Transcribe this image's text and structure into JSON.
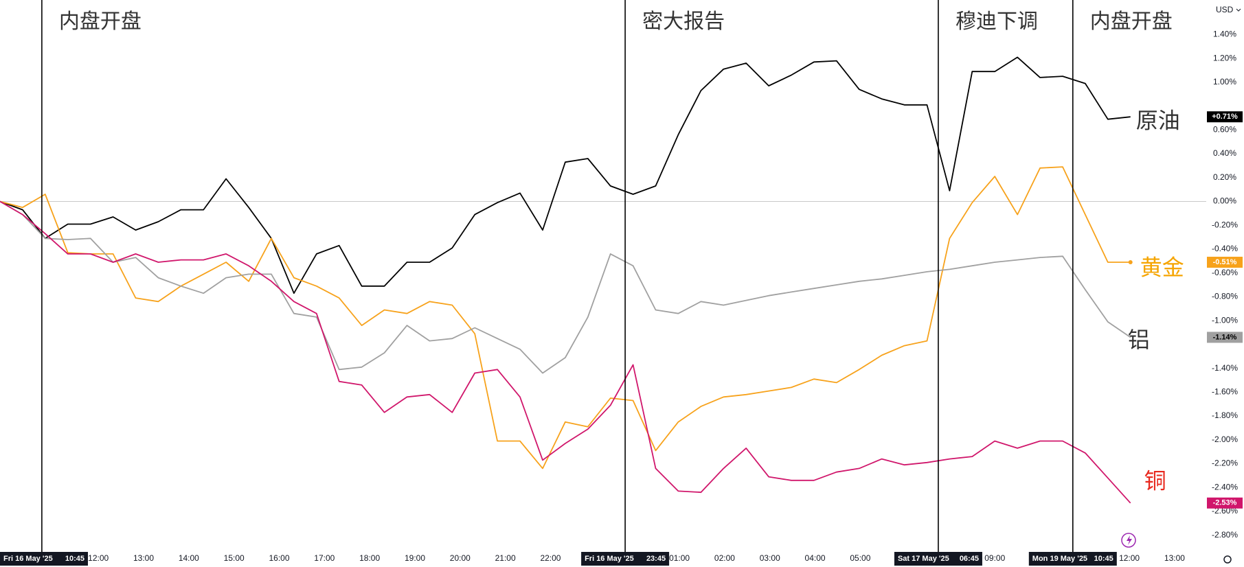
{
  "chart_data": {
    "type": "line",
    "currency": "USD",
    "x": [
      0,
      2,
      4,
      6,
      8,
      10,
      12,
      14,
      16,
      18,
      20,
      22,
      24,
      26,
      28,
      30,
      32,
      34,
      36,
      38,
      40,
      42,
      44,
      46,
      48,
      50,
      52,
      54,
      56,
      58,
      60,
      62,
      64,
      66,
      68,
      70,
      72,
      74,
      76,
      78,
      80,
      82,
      84,
      86,
      88,
      90,
      92,
      94,
      96,
      98,
      100
    ],
    "xlim": [
      0,
      106.7
    ],
    "ylim": [
      -2.94,
      1.69
    ],
    "series": [
      {
        "name": "原油",
        "color": "#000000",
        "label_color": "#333333",
        "last_label": "+0.71%",
        "last_text_color": "#ffffff",
        "values": [
          0.0,
          -0.07,
          -0.31,
          -0.19,
          -0.19,
          -0.13,
          -0.24,
          -0.17,
          -0.07,
          -0.07,
          0.19,
          -0.05,
          -0.31,
          -0.77,
          -0.44,
          -0.37,
          -0.71,
          -0.71,
          -0.51,
          -0.51,
          -0.39,
          -0.11,
          -0.01,
          0.07,
          -0.24,
          0.33,
          0.36,
          0.13,
          0.06,
          0.13,
          0.56,
          0.93,
          1.11,
          1.16,
          0.97,
          1.06,
          1.17,
          1.18,
          0.94,
          0.86,
          0.81,
          0.81,
          0.09,
          1.09,
          1.09,
          1.21,
          1.04,
          1.05,
          0.99,
          0.69,
          0.71
        ]
      },
      {
        "name": "黄金",
        "color": "#f7a21b",
        "label_color": "#f5a400",
        "last_label": "-0.51%",
        "last_text_color": "#ffffff",
        "values": [
          0.0,
          -0.05,
          0.06,
          -0.43,
          -0.44,
          -0.44,
          -0.81,
          -0.84,
          -0.71,
          -0.61,
          -0.51,
          -0.67,
          -0.31,
          -0.64,
          -0.71,
          -0.81,
          -1.04,
          -0.91,
          -0.94,
          -0.84,
          -0.87,
          -1.11,
          -2.01,
          -2.01,
          -2.24,
          -1.85,
          -1.89,
          -1.65,
          -1.67,
          -2.09,
          -1.85,
          -1.72,
          -1.64,
          -1.62,
          -1.59,
          -1.56,
          -1.49,
          -1.52,
          -1.41,
          -1.29,
          -1.21,
          -1.17,
          -0.31,
          -0.01,
          0.21,
          -0.11,
          0.28,
          0.29,
          -0.11,
          -0.51,
          -0.51
        ]
      },
      {
        "name": "铝",
        "color": "#a0a0a0",
        "label_color": "#333333",
        "last_label": "-1.14%",
        "last_text_color": "#000000",
        "values": [
          0.0,
          -0.11,
          -0.31,
          -0.32,
          -0.31,
          -0.51,
          -0.47,
          -0.64,
          -0.71,
          -0.77,
          -0.64,
          -0.61,
          -0.61,
          -0.94,
          -0.97,
          -1.41,
          -1.39,
          -1.27,
          -1.04,
          -1.17,
          -1.15,
          -1.06,
          -1.15,
          -1.24,
          -1.44,
          -1.31,
          -0.97,
          -0.44,
          -0.54,
          -0.91,
          -0.94,
          -0.84,
          -0.87,
          -0.83,
          -0.79,
          -0.76,
          -0.73,
          -0.7,
          -0.67,
          -0.65,
          -0.62,
          -0.59,
          -0.57,
          -0.54,
          -0.51,
          -0.49,
          -0.47,
          -0.46,
          -0.74,
          -1.01,
          -1.14
        ]
      },
      {
        "name": "铜",
        "color": "#d0166b",
        "label_color": "#e8281e",
        "last_label": "-2.53%",
        "last_text_color": "#ffffff",
        "values": [
          0.0,
          -0.11,
          -0.27,
          -0.44,
          -0.44,
          -0.51,
          -0.44,
          -0.51,
          -0.49,
          -0.49,
          -0.44,
          -0.54,
          -0.67,
          -0.84,
          -0.94,
          -1.51,
          -1.54,
          -1.77,
          -1.64,
          -1.62,
          -1.77,
          -1.44,
          -1.41,
          -1.64,
          -2.17,
          -2.03,
          -1.91,
          -1.71,
          -1.37,
          -2.24,
          -2.43,
          -2.44,
          -2.24,
          -2.07,
          -2.31,
          -2.34,
          -2.34,
          -2.27,
          -2.24,
          -2.16,
          -2.21,
          -2.19,
          -2.16,
          -2.14,
          -2.01,
          -2.07,
          -2.01,
          -2.01,
          -2.11,
          -2.32,
          -2.53
        ]
      }
    ],
    "yticks": [
      {
        "value": 1.4,
        "label": "1.40%"
      },
      {
        "value": 1.2,
        "label": "1.20%"
      },
      {
        "value": 1.0,
        "label": "1.00%"
      },
      {
        "value": 0.6,
        "label": "0.60%"
      },
      {
        "value": 0.4,
        "label": "0.40%"
      },
      {
        "value": 0.2,
        "label": "0.20%"
      },
      {
        "value": 0,
        "label": "0.00%"
      },
      {
        "value": -0.2,
        "label": "-0.20%"
      },
      {
        "value": -0.4,
        "label": "-0.40%"
      },
      {
        "value": -0.6,
        "label": "-0.60%"
      },
      {
        "value": -0.8,
        "label": "-0.80%"
      },
      {
        "value": -1.0,
        "label": "-1.00%"
      },
      {
        "value": -1.4,
        "label": "-1.40%"
      },
      {
        "value": -1.6,
        "label": "-1.60%"
      },
      {
        "value": -1.8,
        "label": "-1.80%"
      },
      {
        "value": -2.0,
        "label": "-2.00%"
      },
      {
        "value": -2.2,
        "label": "-2.20%"
      },
      {
        "value": -2.4,
        "label": "-2.40%"
      },
      {
        "value": -2.6,
        "label": "-2.60%"
      },
      {
        "value": -2.8,
        "label": "-2.80%"
      }
    ],
    "xticks": [
      {
        "value": 8.7,
        "label": "12:00"
      },
      {
        "value": 12.7,
        "label": "13:00"
      },
      {
        "value": 16.7,
        "label": "14:00"
      },
      {
        "value": 20.7,
        "label": "15:00"
      },
      {
        "value": 24.7,
        "label": "16:00"
      },
      {
        "value": 28.7,
        "label": "17:00"
      },
      {
        "value": 32.7,
        "label": "18:00"
      },
      {
        "value": 36.7,
        "label": "19:00"
      },
      {
        "value": 40.7,
        "label": "20:00"
      },
      {
        "value": 44.7,
        "label": "21:00"
      },
      {
        "value": 48.7,
        "label": "22:00"
      },
      {
        "value": 60.1,
        "label": "01:00"
      },
      {
        "value": 64.1,
        "label": "02:00"
      },
      {
        "value": 68.1,
        "label": "03:00"
      },
      {
        "value": 72.1,
        "label": "04:00"
      },
      {
        "value": 76.1,
        "label": "05:00"
      },
      {
        "value": 88.0,
        "label": "09:00"
      },
      {
        "value": 99.9,
        "label": "12:00"
      },
      {
        "value": 103.9,
        "label": "13:00"
      }
    ],
    "annotations": [
      {
        "x": 3.7,
        "text": "内盘开盘",
        "date_label": "Fri 16 May '25",
        "time_label": "10:45"
      },
      {
        "x": 55.3,
        "text": "密大报告",
        "date_label": "Fri 16 May '25",
        "time_label": "23:45"
      },
      {
        "x": 83.0,
        "text": "穆迪下调",
        "date_label": "Sat 17 May '25",
        "time_label": "06:45"
      },
      {
        "x": 94.9,
        "text": "内盘开盘",
        "date_label": "Mon 19 May '25",
        "time_label": "10:45"
      }
    ]
  }
}
